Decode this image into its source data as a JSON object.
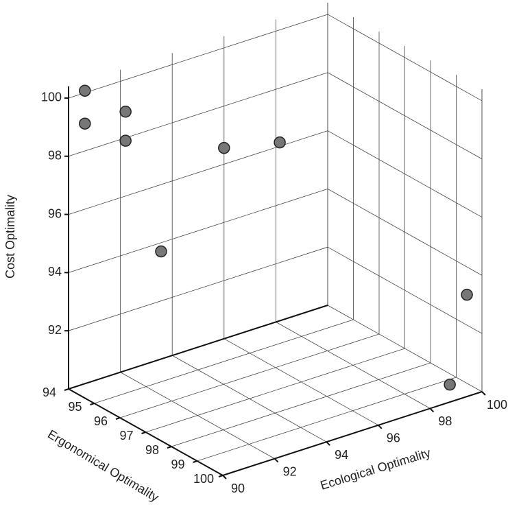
{
  "chart_data": {
    "type": "scatter3d",
    "xlabel": "Ergonomical Optimality",
    "ylabel": "Ecological Optimality",
    "zlabel": "Cost Optimality",
    "x": [
      94,
      94,
      94,
      94,
      94,
      94,
      94,
      100,
      100
    ],
    "y": [
      90.63,
      90.63,
      92.2,
      92.2,
      96.0,
      98.15,
      93.57,
      99.42,
      98.76
    ],
    "z": [
      100.07,
      98.94,
      98.9,
      97.9,
      96.56,
      96.13,
      93.7,
      93.5,
      90.6
    ],
    "color": "#777777",
    "xlim": [
      94,
      100
    ],
    "xticks": [
      94,
      95,
      96,
      97,
      98,
      99,
      100
    ],
    "ylim": [
      90,
      100
    ],
    "yticks": [
      90,
      92,
      94,
      96,
      98,
      100
    ],
    "zlim": [
      90,
      100.4
    ],
    "zticks": [
      92,
      94,
      96,
      98,
      100
    ],
    "grid": true
  }
}
